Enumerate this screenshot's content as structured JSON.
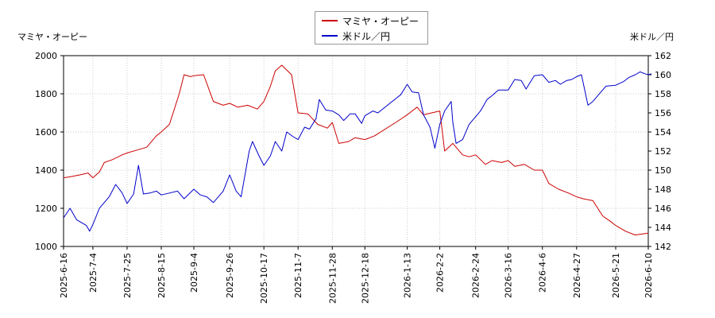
{
  "chart_data": {
    "type": "line",
    "left_axis_title": "マミヤ・オーピー",
    "right_axis_title": "米ドル／円",
    "legend": {
      "placement": "top-center"
    },
    "x_ticks": [
      "2025-6-16",
      "2025-7-4",
      "2025-7-25",
      "2025-8-15",
      "2025-9-4",
      "2025-9-26",
      "2025-10-17",
      "2025-11-7",
      "2025-11-28",
      "2025-12-18",
      "2026-1-13",
      "2026-2-2",
      "2026-2-24",
      "2026-3-16",
      "2026-4-6",
      "2026-4-27",
      "2026-5-21",
      "2026-6-10"
    ],
    "y_left": {
      "min": 1000,
      "max": 2000,
      "ticks": [
        1000,
        1200,
        1400,
        1600,
        1800,
        2000
      ]
    },
    "y_right": {
      "min": 142,
      "max": 162,
      "ticks": [
        142,
        144,
        146,
        148,
        150,
        152,
        154,
        156,
        158,
        160,
        162
      ]
    },
    "grid": true,
    "series": [
      {
        "name": "マミヤ・オーピー",
        "axis": "left",
        "color": "#cc0000",
        "points": [
          [
            "2025-6-16",
            1360
          ],
          [
            "2025-6-20",
            1365
          ],
          [
            "2025-6-26",
            1375
          ],
          [
            "2025-7-1",
            1385
          ],
          [
            "2025-7-4",
            1360
          ],
          [
            "2025-7-8",
            1390
          ],
          [
            "2025-7-11",
            1440
          ],
          [
            "2025-7-16",
            1455
          ],
          [
            "2025-7-22",
            1480
          ],
          [
            "2025-7-25",
            1490
          ],
          [
            "2025-7-31",
            1505
          ],
          [
            "2025-8-6",
            1520
          ],
          [
            "2025-8-12",
            1580
          ],
          [
            "2025-8-15",
            1600
          ],
          [
            "2025-8-20",
            1640
          ],
          [
            "2025-8-26",
            1800
          ],
          [
            "2025-8-29",
            1900
          ],
          [
            "2025-9-2",
            1890
          ],
          [
            "2025-9-4",
            1895
          ],
          [
            "2025-9-10",
            1900
          ],
          [
            "2025-9-16",
            1760
          ],
          [
            "2025-9-22",
            1740
          ],
          [
            "2025-9-26",
            1750
          ],
          [
            "2025-10-1",
            1730
          ],
          [
            "2025-10-7",
            1740
          ],
          [
            "2025-10-13",
            1720
          ],
          [
            "2025-10-17",
            1760
          ],
          [
            "2025-10-21",
            1840
          ],
          [
            "2025-10-24",
            1920
          ],
          [
            "2025-10-28",
            1950
          ],
          [
            "2025-11-3",
            1900
          ],
          [
            "2025-11-7",
            1700
          ],
          [
            "2025-11-13",
            1695
          ],
          [
            "2025-11-19",
            1640
          ],
          [
            "2025-11-25",
            1620
          ],
          [
            "2025-11-28",
            1650
          ],
          [
            "2025-12-2",
            1540
          ],
          [
            "2025-12-8",
            1550
          ],
          [
            "2025-12-12",
            1570
          ],
          [
            "2025-12-18",
            1560
          ],
          [
            "2025-12-24",
            1580
          ],
          [
            "2026-1-6",
            1650
          ],
          [
            "2026-1-13",
            1690
          ],
          [
            "2026-1-19",
            1730
          ],
          [
            "2026-1-23",
            1690
          ],
          [
            "2026-1-28",
            1700
          ],
          [
            "2026-2-2",
            1710
          ],
          [
            "2026-2-5",
            1500
          ],
          [
            "2026-2-10",
            1540
          ],
          [
            "2026-2-16",
            1480
          ],
          [
            "2026-2-20",
            1470
          ],
          [
            "2026-2-24",
            1480
          ],
          [
            "2026-3-2",
            1430
          ],
          [
            "2026-3-6",
            1450
          ],
          [
            "2026-3-12",
            1440
          ],
          [
            "2026-3-16",
            1450
          ],
          [
            "2026-3-20",
            1420
          ],
          [
            "2026-3-26",
            1430
          ],
          [
            "2026-4-1",
            1400
          ],
          [
            "2026-4-6",
            1400
          ],
          [
            "2026-4-10",
            1330
          ],
          [
            "2026-4-16",
            1300
          ],
          [
            "2026-4-22",
            1280
          ],
          [
            "2026-4-27",
            1260
          ],
          [
            "2026-5-1",
            1250
          ],
          [
            "2026-5-7",
            1240
          ],
          [
            "2026-5-13",
            1160
          ],
          [
            "2026-5-18",
            1130
          ],
          [
            "2026-5-21",
            1110
          ],
          [
            "2026-5-27",
            1080
          ],
          [
            "2026-6-2",
            1060
          ],
          [
            "2026-6-6",
            1065
          ],
          [
            "2026-6-10",
            1070
          ]
        ]
      },
      {
        "name": "米ドル／円",
        "axis": "right",
        "color": "#0000cc",
        "points": [
          [
            "2025-6-16",
            145.0
          ],
          [
            "2025-6-20",
            146.0
          ],
          [
            "2025-6-24",
            144.8
          ],
          [
            "2025-6-30",
            144.2
          ],
          [
            "2025-7-2",
            143.6
          ],
          [
            "2025-7-4",
            144.3
          ],
          [
            "2025-7-8",
            146.0
          ],
          [
            "2025-7-14",
            147.2
          ],
          [
            "2025-7-18",
            148.5
          ],
          [
            "2025-7-22",
            147.6
          ],
          [
            "2025-7-25",
            146.5
          ],
          [
            "2025-7-29",
            147.5
          ],
          [
            "2025-8-1",
            150.5
          ],
          [
            "2025-8-4",
            147.5
          ],
          [
            "2025-8-8",
            147.6
          ],
          [
            "2025-8-12",
            147.8
          ],
          [
            "2025-8-15",
            147.4
          ],
          [
            "2025-8-20",
            147.6
          ],
          [
            "2025-8-25",
            147.8
          ],
          [
            "2025-8-29",
            147.0
          ],
          [
            "2025-9-4",
            148.0
          ],
          [
            "2025-9-8",
            147.4
          ],
          [
            "2025-9-12",
            147.2
          ],
          [
            "2025-9-16",
            146.6
          ],
          [
            "2025-9-22",
            147.8
          ],
          [
            "2025-9-26",
            149.5
          ],
          [
            "2025-9-30",
            147.8
          ],
          [
            "2025-10-3",
            147.2
          ],
          [
            "2025-10-8",
            152.0
          ],
          [
            "2025-10-10",
            153.0
          ],
          [
            "2025-10-14",
            151.5
          ],
          [
            "2025-10-17",
            150.5
          ],
          [
            "2025-10-21",
            151.5
          ],
          [
            "2025-10-24",
            153.0
          ],
          [
            "2025-10-28",
            152.0
          ],
          [
            "2025-10-31",
            154.0
          ],
          [
            "2025-11-4",
            153.5
          ],
          [
            "2025-11-7",
            153.2
          ],
          [
            "2025-11-11",
            154.5
          ],
          [
            "2025-11-14",
            154.3
          ],
          [
            "2025-11-18",
            155.4
          ],
          [
            "2025-11-20",
            157.4
          ],
          [
            "2025-11-24",
            156.3
          ],
          [
            "2025-11-28",
            156.2
          ],
          [
            "2025-12-2",
            155.8
          ],
          [
            "2025-12-5",
            155.2
          ],
          [
            "2025-12-9",
            155.9
          ],
          [
            "2025-12-12",
            155.9
          ],
          [
            "2025-12-16",
            154.9
          ],
          [
            "2025-12-18",
            155.7
          ],
          [
            "2025-12-23",
            156.2
          ],
          [
            "2025-12-26",
            156.0
          ],
          [
            "2026-1-6",
            157.5
          ],
          [
            "2026-1-9",
            157.9
          ],
          [
            "2026-1-13",
            159.0
          ],
          [
            "2026-1-16",
            158.2
          ],
          [
            "2026-1-20",
            158.1
          ],
          [
            "2026-1-23",
            155.8
          ],
          [
            "2026-1-27",
            154.5
          ],
          [
            "2026-1-30",
            152.3
          ],
          [
            "2026-2-2",
            154.8
          ],
          [
            "2026-2-5",
            156.2
          ],
          [
            "2026-2-9",
            157.2
          ],
          [
            "2026-2-10",
            155.0
          ],
          [
            "2026-2-12",
            152.8
          ],
          [
            "2026-2-16",
            153.2
          ],
          [
            "2026-2-20",
            154.8
          ],
          [
            "2026-2-24",
            155.6
          ],
          [
            "2026-2-27",
            156.2
          ],
          [
            "2026-3-3",
            157.4
          ],
          [
            "2026-3-6",
            157.8
          ],
          [
            "2026-3-10",
            158.4
          ],
          [
            "2026-3-16",
            158.4
          ],
          [
            "2026-3-20",
            159.5
          ],
          [
            "2026-3-24",
            159.4
          ],
          [
            "2026-3-27",
            158.5
          ],
          [
            "2026-4-1",
            159.9
          ],
          [
            "2026-4-6",
            160.0
          ],
          [
            "2026-4-10",
            159.2
          ],
          [
            "2026-4-14",
            159.4
          ],
          [
            "2026-4-17",
            159.0
          ],
          [
            "2026-4-21",
            159.4
          ],
          [
            "2026-4-24",
            159.5
          ],
          [
            "2026-4-27",
            159.8
          ],
          [
            "2026-4-30",
            160.0
          ],
          [
            "2026-5-4",
            156.8
          ],
          [
            "2026-5-7",
            157.2
          ],
          [
            "2026-5-12",
            158.2
          ],
          [
            "2026-5-15",
            158.8
          ],
          [
            "2026-5-21",
            158.9
          ],
          [
            "2026-5-26",
            159.3
          ],
          [
            "2026-5-29",
            159.7
          ],
          [
            "2026-6-2",
            160.0
          ],
          [
            "2026-6-5",
            160.3
          ],
          [
            "2026-6-8",
            160.1
          ],
          [
            "2026-6-10",
            160.0
          ],
          [
            "2026-6-12",
            160.1
          ]
        ]
      }
    ]
  }
}
